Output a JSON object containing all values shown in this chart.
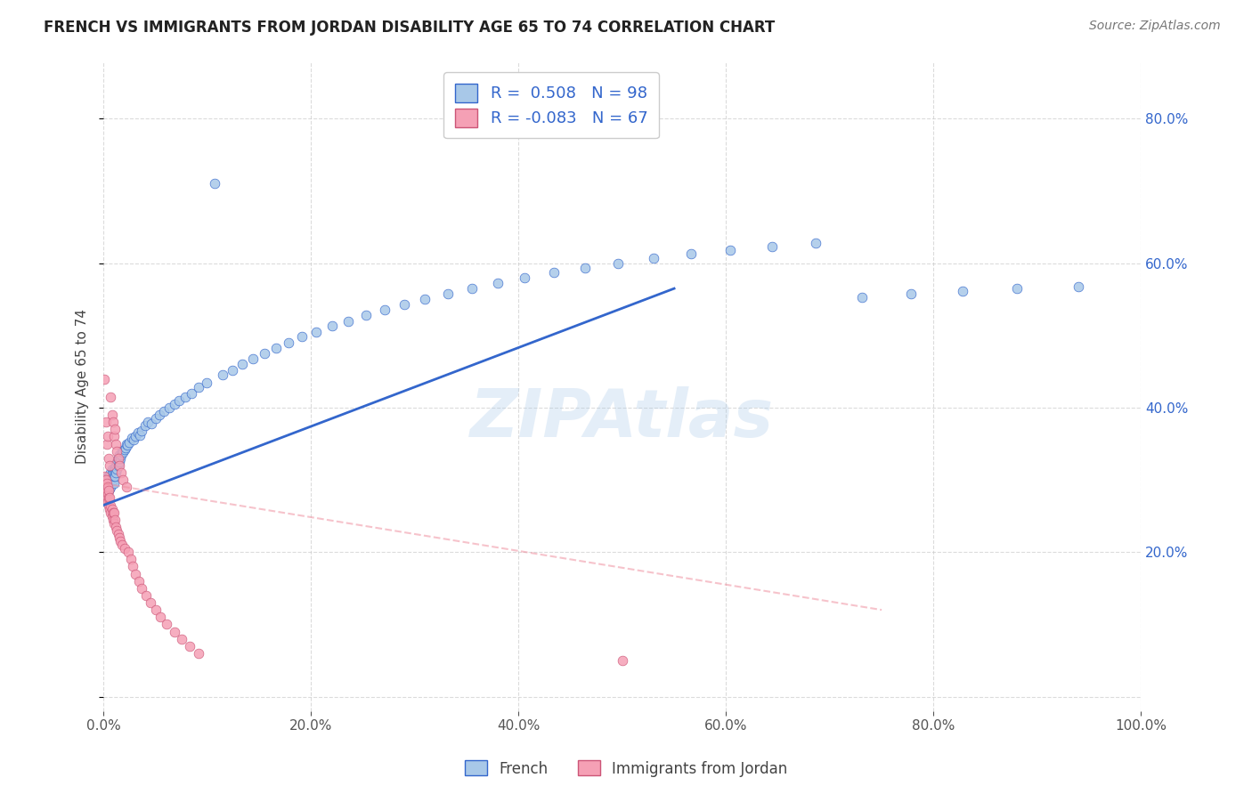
{
  "title": "FRENCH VS IMMIGRANTS FROM JORDAN DISABILITY AGE 65 TO 74 CORRELATION CHART",
  "source": "Source: ZipAtlas.com",
  "ylabel": "Disability Age 65 to 74",
  "watermark": "ZIPAtlas",
  "legend_french": "French",
  "legend_jordan": "Immigrants from Jordan",
  "R_french": 0.508,
  "N_french": 98,
  "R_jordan": -0.083,
  "N_jordan": 67,
  "x_min": 0.0,
  "x_max": 1.0,
  "y_min": -0.02,
  "y_max": 0.88,
  "french_color": "#a8c8e8",
  "jordan_color": "#f5a0b5",
  "trendline_french_color": "#3366cc",
  "trendline_jordan_color": "#ee8899",
  "background_color": "#ffffff",
  "grid_color": "#cccccc",
  "french_x": [
    0.001,
    0.001,
    0.002,
    0.002,
    0.003,
    0.003,
    0.003,
    0.004,
    0.004,
    0.004,
    0.005,
    0.005,
    0.005,
    0.006,
    0.006,
    0.006,
    0.007,
    0.007,
    0.007,
    0.008,
    0.008,
    0.008,
    0.009,
    0.009,
    0.01,
    0.01,
    0.01,
    0.011,
    0.011,
    0.012,
    0.012,
    0.013,
    0.013,
    0.014,
    0.014,
    0.015,
    0.015,
    0.016,
    0.017,
    0.018,
    0.019,
    0.02,
    0.021,
    0.022,
    0.023,
    0.025,
    0.027,
    0.029,
    0.031,
    0.033,
    0.035,
    0.037,
    0.04,
    0.043,
    0.046,
    0.05,
    0.054,
    0.058,
    0.063,
    0.068,
    0.073,
    0.079,
    0.085,
    0.092,
    0.099,
    0.107,
    0.115,
    0.124,
    0.134,
    0.144,
    0.155,
    0.166,
    0.178,
    0.191,
    0.205,
    0.22,
    0.236,
    0.253,
    0.271,
    0.29,
    0.31,
    0.332,
    0.355,
    0.38,
    0.406,
    0.434,
    0.464,
    0.496,
    0.53,
    0.566,
    0.604,
    0.644,
    0.686,
    0.731,
    0.778,
    0.828,
    0.88,
    0.94
  ],
  "french_y": [
    0.285,
    0.295,
    0.28,
    0.3,
    0.278,
    0.29,
    0.295,
    0.285,
    0.295,
    0.305,
    0.285,
    0.295,
    0.305,
    0.288,
    0.295,
    0.305,
    0.29,
    0.3,
    0.31,
    0.295,
    0.305,
    0.315,
    0.3,
    0.31,
    0.295,
    0.305,
    0.315,
    0.305,
    0.315,
    0.31,
    0.32,
    0.315,
    0.325,
    0.32,
    0.33,
    0.325,
    0.335,
    0.33,
    0.335,
    0.34,
    0.338,
    0.342,
    0.345,
    0.35,
    0.348,
    0.352,
    0.358,
    0.355,
    0.36,
    0.365,
    0.362,
    0.368,
    0.375,
    0.38,
    0.378,
    0.385,
    0.39,
    0.395,
    0.4,
    0.405,
    0.41,
    0.415,
    0.42,
    0.428,
    0.435,
    0.71,
    0.445,
    0.452,
    0.46,
    0.468,
    0.475,
    0.483,
    0.49,
    0.498,
    0.505,
    0.513,
    0.52,
    0.528,
    0.535,
    0.543,
    0.55,
    0.558,
    0.565,
    0.572,
    0.58,
    0.587,
    0.593,
    0.6,
    0.607,
    0.613,
    0.618,
    0.623,
    0.628,
    0.553,
    0.558,
    0.562,
    0.565,
    0.568
  ],
  "jordan_x": [
    0.001,
    0.001,
    0.001,
    0.001,
    0.002,
    0.002,
    0.002,
    0.002,
    0.003,
    0.003,
    0.003,
    0.003,
    0.004,
    0.004,
    0.004,
    0.004,
    0.005,
    0.005,
    0.005,
    0.005,
    0.006,
    0.006,
    0.006,
    0.007,
    0.007,
    0.007,
    0.008,
    0.008,
    0.008,
    0.009,
    0.009,
    0.009,
    0.01,
    0.01,
    0.01,
    0.011,
    0.011,
    0.012,
    0.012,
    0.013,
    0.013,
    0.014,
    0.014,
    0.015,
    0.015,
    0.016,
    0.017,
    0.018,
    0.019,
    0.02,
    0.022,
    0.024,
    0.026,
    0.028,
    0.031,
    0.034,
    0.037,
    0.041,
    0.045,
    0.05,
    0.055,
    0.061,
    0.068,
    0.075,
    0.083,
    0.092,
    0.5
  ],
  "jordan_y": [
    0.285,
    0.295,
    0.305,
    0.44,
    0.28,
    0.29,
    0.3,
    0.38,
    0.275,
    0.285,
    0.295,
    0.35,
    0.27,
    0.28,
    0.29,
    0.36,
    0.265,
    0.275,
    0.285,
    0.33,
    0.26,
    0.275,
    0.32,
    0.255,
    0.265,
    0.415,
    0.25,
    0.26,
    0.39,
    0.245,
    0.255,
    0.38,
    0.24,
    0.255,
    0.36,
    0.245,
    0.37,
    0.235,
    0.35,
    0.23,
    0.34,
    0.225,
    0.33,
    0.22,
    0.32,
    0.215,
    0.31,
    0.21,
    0.3,
    0.205,
    0.29,
    0.2,
    0.19,
    0.18,
    0.17,
    0.16,
    0.15,
    0.14,
    0.13,
    0.12,
    0.11,
    0.1,
    0.09,
    0.08,
    0.07,
    0.06,
    0.05
  ],
  "french_trend_x0": 0.0,
  "french_trend_x1": 0.55,
  "french_trend_y0": 0.265,
  "french_trend_y1": 0.565,
  "jordan_trend_x0": 0.0,
  "jordan_trend_x1": 0.75,
  "jordan_trend_y0": 0.295,
  "jordan_trend_y1": 0.12
}
